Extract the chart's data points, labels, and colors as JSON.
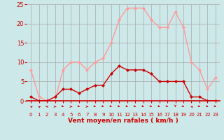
{
  "hours": [
    0,
    1,
    2,
    3,
    4,
    5,
    6,
    7,
    8,
    9,
    10,
    11,
    12,
    13,
    14,
    15,
    16,
    17,
    18,
    19,
    20,
    21,
    22,
    23
  ],
  "wind_avg": [
    1,
    0,
    0,
    1,
    3,
    3,
    2,
    3,
    4,
    4,
    7,
    9,
    8,
    8,
    8,
    7,
    5,
    5,
    5,
    5,
    1,
    1,
    0,
    0
  ],
  "wind_gust": [
    8,
    1,
    0,
    0,
    8,
    10,
    10,
    8,
    10,
    11,
    15,
    21,
    24,
    24,
    24,
    21,
    19,
    19,
    23,
    19,
    10,
    8,
    3,
    6
  ],
  "bg_color": "#cce8e8",
  "grid_color": "#aaaaaa",
  "avg_color": "#cc0000",
  "gust_color": "#ff9999",
  "xlabel": "Vent moyen/en rafales ( km/h )",
  "xlabel_color": "#cc0000",
  "tick_color": "#cc0000",
  "ylim": [
    0,
    25
  ],
  "yticks": [
    0,
    5,
    10,
    15,
    20,
    25
  ],
  "marker": "D",
  "marker_size": 2
}
